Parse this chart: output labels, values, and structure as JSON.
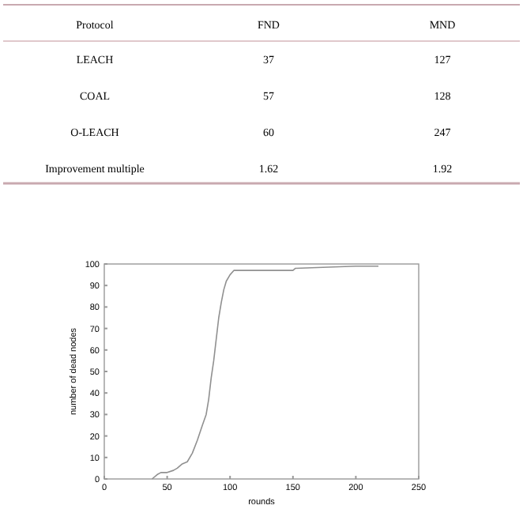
{
  "chart_data": [
    {
      "type": "other",
      "xlabel": "Protocol",
      "categories": [
        "LEACH",
        "COAL",
        "O-LEACH",
        "Improvement multiple"
      ],
      "series": [
        {
          "name": "FND",
          "values": [
            37,
            57,
            60,
            1.62
          ]
        },
        {
          "name": "MND",
          "values": [
            127,
            128,
            247,
            1.92
          ]
        }
      ],
      "data_labels": true
    },
    {
      "type": "line",
      "xlabel": "rounds",
      "ylabel": "number of dead nodes",
      "xlim": [
        0,
        250
      ],
      "ylim": [
        0,
        100
      ],
      "xticks": [
        0,
        50,
        100,
        150,
        200,
        250
      ],
      "yticks": [
        0,
        10,
        20,
        30,
        40,
        50,
        60,
        70,
        80,
        90,
        100
      ],
      "grid": false,
      "marker": "none",
      "line_style": "solid",
      "series": [
        {
          "color": "#909090",
          "x": [
            38,
            42,
            45,
            50,
            55,
            58,
            62,
            66,
            70,
            74,
            78,
            81,
            83,
            85,
            87,
            89,
            91,
            93,
            95,
            97,
            100,
            103,
            150,
            152,
            200,
            218
          ],
          "values": [
            0,
            2,
            3,
            3,
            4,
            5,
            7,
            8,
            12,
            18,
            25,
            30,
            37,
            47,
            55,
            65,
            75,
            82,
            88,
            92,
            95,
            97,
            97,
            98,
            99,
            99
          ]
        }
      ]
    }
  ]
}
